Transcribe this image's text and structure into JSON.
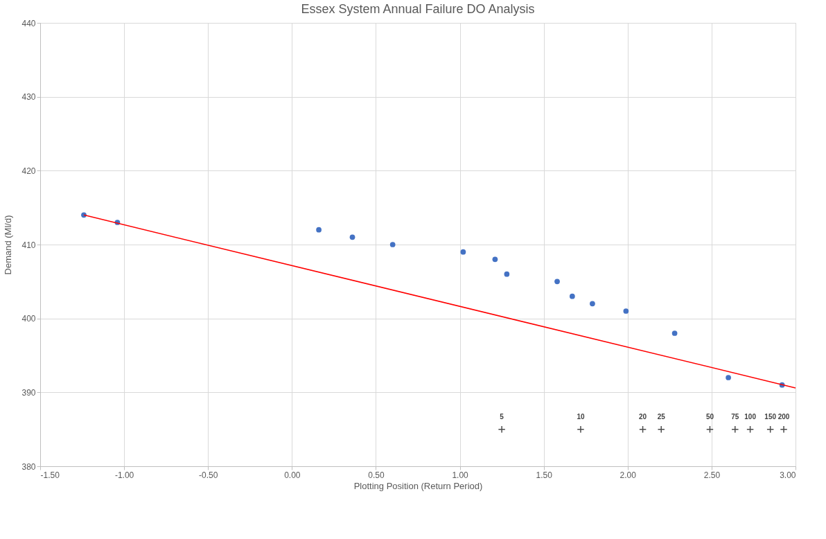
{
  "chart_data": {
    "type": "scatter",
    "title": "Essex System Annual Failure DO Analysis",
    "xlabel": "Plotting Position (Return Period)",
    "ylabel": "Demand (Ml/d)",
    "xlim": [
      -1.5,
      3.0
    ],
    "xticks": [
      {
        "value": -1.5,
        "label": "-1.50"
      },
      {
        "value": -1.0,
        "label": "-1.00"
      },
      {
        "value": -0.5,
        "label": "-0.50"
      },
      {
        "value": 0,
        "label": "0.00"
      },
      {
        "value": 0.5,
        "label": "0.50"
      },
      {
        "value": 1.0,
        "label": "1.00"
      },
      {
        "value": 1.5,
        "label": "1.50"
      },
      {
        "value": 2.0,
        "label": "2.00"
      },
      {
        "value": 2.5,
        "label": "2.50"
      },
      {
        "value": 3.0,
        "label": "3.00"
      }
    ],
    "ylim": [
      380,
      440
    ],
    "yticks": [
      380,
      390,
      400,
      410,
      420,
      430,
      440
    ],
    "grid": true,
    "series": [
      {
        "color": "#4472c4",
        "marker": "circle",
        "x": [
          -1.24,
          -1.04,
          0.16,
          0.36,
          0.6,
          1.02,
          1.21,
          1.28,
          1.58,
          1.67,
          1.79,
          1.99,
          2.28,
          2.6,
          2.92
        ],
        "values": [
          414,
          413,
          412,
          411,
          410,
          409,
          408,
          406,
          405,
          403,
          402,
          401,
          398,
          392,
          391
        ]
      },
      {
        "type": "line",
        "color": "#ff0000",
        "marker": "none",
        "x": [
          -1.24,
          3.0
        ],
        "values": [
          414.0,
          390.6
        ]
      },
      {
        "color": "#000000",
        "marker": "cross",
        "x": [
          1.25,
          1.72,
          2.09,
          2.2,
          2.49,
          2.64,
          2.73,
          2.85,
          2.93
        ],
        "values": [
          385,
          385,
          385,
          385,
          385,
          385,
          385,
          385,
          385
        ]
      }
    ],
    "annotations": [
      {
        "text": "5",
        "x": 1.25,
        "y": 385
      },
      {
        "text": "10",
        "x": 1.72,
        "y": 385
      },
      {
        "text": "20",
        "x": 2.09,
        "y": 385
      },
      {
        "text": "25",
        "x": 2.2,
        "y": 385
      },
      {
        "text": "50",
        "x": 2.49,
        "y": 385
      },
      {
        "text": "75",
        "x": 2.64,
        "y": 385
      },
      {
        "text": "100",
        "x": 2.73,
        "y": 385
      },
      {
        "text": "150",
        "x": 2.85,
        "y": 385
      },
      {
        "text": "200",
        "x": 2.93,
        "y": 385
      }
    ]
  }
}
